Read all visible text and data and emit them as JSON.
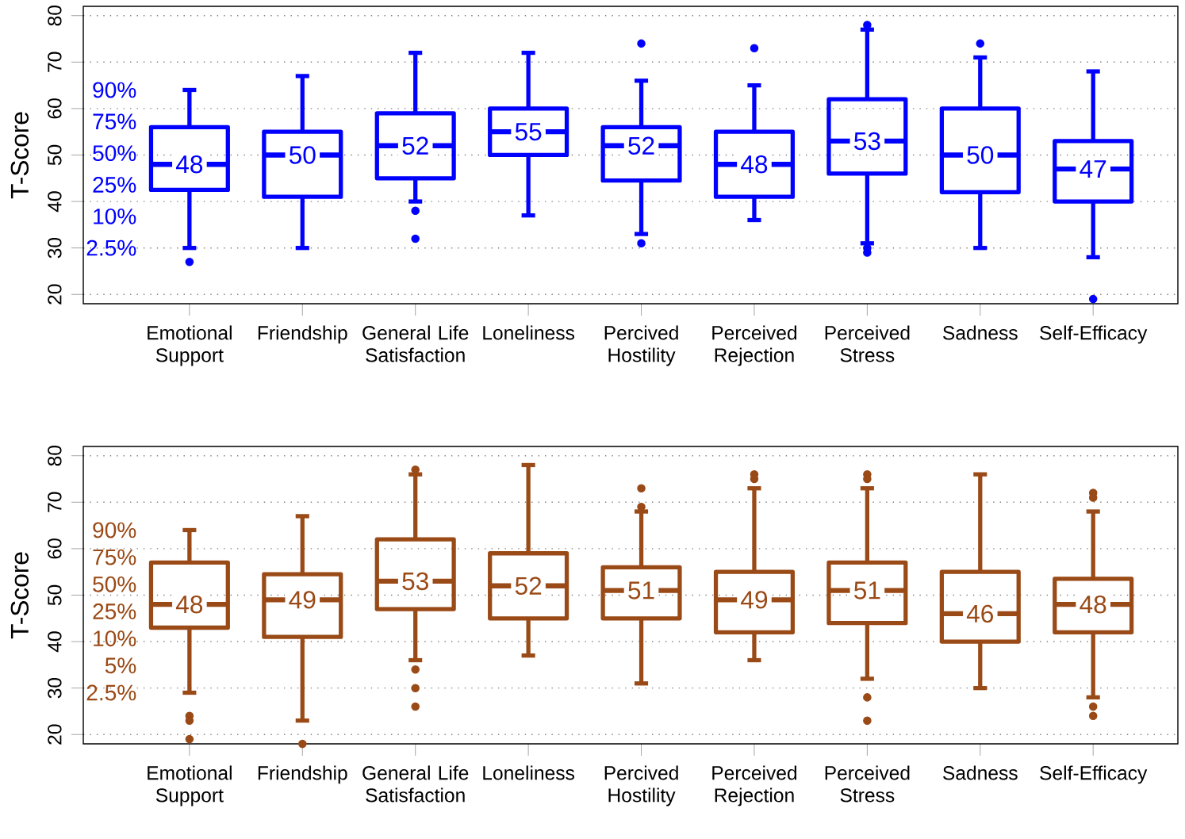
{
  "chart_data": [
    {
      "type": "box",
      "color": "#0000ff",
      "ylabel": "T-Score",
      "ylim": [
        18,
        82
      ],
      "yticks": [
        20,
        30,
        40,
        50,
        60,
        70,
        80
      ],
      "grid": "y",
      "categories": [
        "Emotional Support",
        "Friendship",
        "General Life Satisfaction",
        "Loneliness",
        "Percived Hostility",
        "Perceived Rejection",
        "Perceived Stress",
        "Sadness",
        "Self-Efficacy"
      ],
      "boxes": [
        {
          "low": 30,
          "q1": 42.5,
          "median": 48,
          "q3": 56,
          "high": 64,
          "outliers": [
            27
          ]
        },
        {
          "low": 30,
          "q1": 41,
          "median": 50,
          "q3": 55,
          "high": 67
        },
        {
          "low": 40,
          "q1": 45,
          "median": 52,
          "q3": 59,
          "high": 72,
          "outliers": [
            38,
            32
          ]
        },
        {
          "low": 37,
          "q1": 50,
          "median": 55,
          "q3": 60,
          "high": 72
        },
        {
          "low": 33,
          "q1": 44.5,
          "median": 52,
          "q3": 56,
          "high": 66,
          "outliers": [
            74,
            31
          ]
        },
        {
          "low": 36,
          "q1": 41,
          "median": 48,
          "q3": 55,
          "high": 65,
          "outliers": [
            73
          ]
        },
        {
          "low": 31,
          "q1": 46,
          "median": 53,
          "q3": 62,
          "high": 77,
          "outliers": [
            78,
            30,
            29
          ]
        },
        {
          "low": 30,
          "q1": 42,
          "median": 50,
          "q3": 60,
          "high": 71,
          "outliers": [
            74
          ]
        },
        {
          "low": 28,
          "q1": 40,
          "median": 47,
          "q3": 53,
          "high": 68,
          "outliers": [
            19
          ]
        }
      ],
      "value_labels": [
        "48",
        "50",
        "52",
        "55",
        "52",
        "48",
        "53",
        "50",
        "47"
      ],
      "annotations": [
        "90%",
        "75%",
        "50%",
        "25%",
        "10%",
        "2.5%"
      ]
    },
    {
      "type": "box",
      "color": "#9a4a16",
      "ylabel": "T-Score",
      "ylim": [
        18,
        82
      ],
      "yticks": [
        20,
        30,
        40,
        50,
        60,
        70,
        80
      ],
      "grid": "y",
      "categories": [
        "Emotional Support",
        "Friendship",
        "General Life Satisfaction",
        "Loneliness",
        "Percived Hostility",
        "Perceived Rejection",
        "Perceived Stress",
        "Sadness",
        "Self-Efficacy"
      ],
      "boxes": [
        {
          "low": 29,
          "q1": 43,
          "median": 48,
          "q3": 57,
          "high": 64,
          "outliers": [
            24,
            23,
            19
          ]
        },
        {
          "low": 23,
          "q1": 41,
          "median": 49,
          "q3": 54.5,
          "high": 67,
          "outliers": [
            18
          ]
        },
        {
          "low": 36,
          "q1": 47,
          "median": 53,
          "q3": 62,
          "high": 76,
          "outliers": [
            77,
            34,
            30,
            26
          ]
        },
        {
          "low": 37,
          "q1": 45,
          "median": 52,
          "q3": 59,
          "high": 78
        },
        {
          "low": 31,
          "q1": 45,
          "median": 51,
          "q3": 56,
          "high": 68,
          "outliers": [
            73,
            69
          ]
        },
        {
          "low": 36,
          "q1": 42,
          "median": 49,
          "q3": 55,
          "high": 73,
          "outliers": [
            76,
            75
          ]
        },
        {
          "low": 32,
          "q1": 44,
          "median": 51,
          "q3": 57,
          "high": 73,
          "outliers": [
            76,
            75,
            28,
            23
          ]
        },
        {
          "low": 30,
          "q1": 40,
          "median": 46,
          "q3": 55,
          "high": 76
        },
        {
          "low": 28,
          "q1": 42,
          "median": 48,
          "q3": 53.5,
          "high": 68,
          "outliers": [
            72,
            71,
            26,
            24
          ]
        }
      ],
      "value_labels": [
        "48",
        "49",
        "53",
        "52",
        "51",
        "49",
        "51",
        "46",
        "48"
      ],
      "annotations": [
        "90%",
        "75%",
        "50%",
        "25%",
        "10%",
        "5%",
        "2.5%"
      ]
    }
  ]
}
